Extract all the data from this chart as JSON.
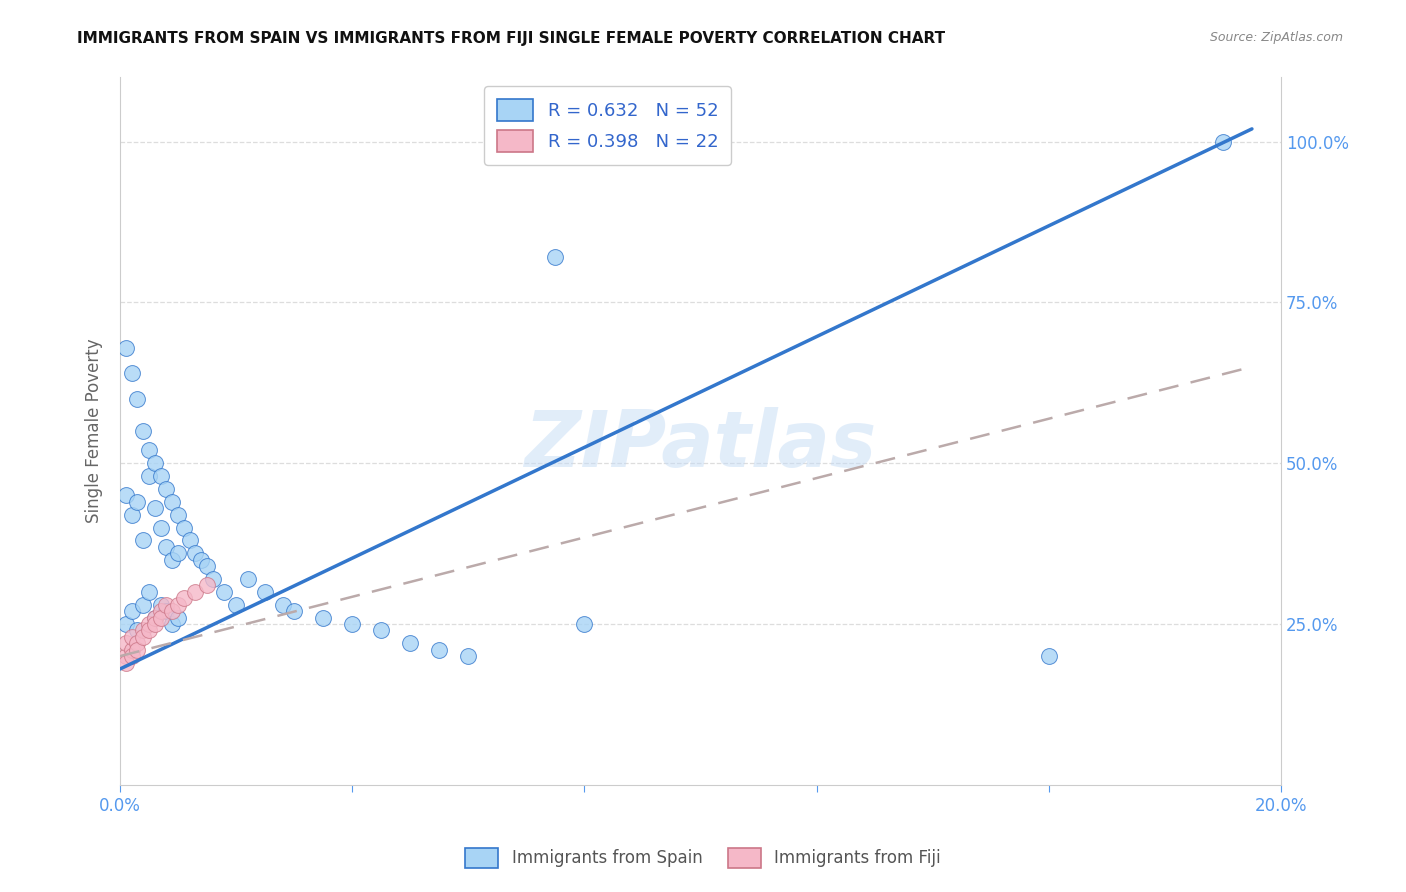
{
  "title": "IMMIGRANTS FROM SPAIN VS IMMIGRANTS FROM FIJI SINGLE FEMALE POVERTY CORRELATION CHART",
  "source": "Source: ZipAtlas.com",
  "ylabel": "Single Female Poverty",
  "legend_label_spain": "Immigrants from Spain",
  "legend_label_fiji": "Immigrants from Fiji",
  "color_spain": "#a8d4f5",
  "color_fiji": "#f5b8c8",
  "color_line_spain": "#3377cc",
  "color_line_fiji": "#bbaaaa",
  "watermark": "ZIPatlas",
  "spain_scatter_x": [
    0.001,
    0.002,
    0.003,
    0.004,
    0.005,
    0.006,
    0.007,
    0.008,
    0.009,
    0.01,
    0.001,
    0.002,
    0.003,
    0.004,
    0.005,
    0.006,
    0.007,
    0.008,
    0.009,
    0.01,
    0.001,
    0.002,
    0.003,
    0.004,
    0.005,
    0.006,
    0.007,
    0.008,
    0.009,
    0.01,
    0.011,
    0.012,
    0.013,
    0.014,
    0.015,
    0.016,
    0.018,
    0.02,
    0.022,
    0.025,
    0.028,
    0.03,
    0.035,
    0.04,
    0.045,
    0.05,
    0.055,
    0.06,
    0.075,
    0.08,
    0.16,
    0.19
  ],
  "spain_scatter_y": [
    0.25,
    0.27,
    0.24,
    0.28,
    0.3,
    0.26,
    0.28,
    0.27,
    0.25,
    0.26,
    0.45,
    0.42,
    0.44,
    0.38,
    0.48,
    0.43,
    0.4,
    0.37,
    0.35,
    0.36,
    0.68,
    0.64,
    0.6,
    0.55,
    0.52,
    0.5,
    0.48,
    0.46,
    0.44,
    0.42,
    0.4,
    0.38,
    0.36,
    0.35,
    0.34,
    0.32,
    0.3,
    0.28,
    0.32,
    0.3,
    0.28,
    0.27,
    0.26,
    0.25,
    0.24,
    0.22,
    0.21,
    0.2,
    0.82,
    0.25,
    0.2,
    1.0
  ],
  "fiji_scatter_x": [
    0.001,
    0.001,
    0.001,
    0.002,
    0.002,
    0.002,
    0.003,
    0.003,
    0.004,
    0.004,
    0.005,
    0.005,
    0.006,
    0.006,
    0.007,
    0.007,
    0.008,
    0.009,
    0.01,
    0.011,
    0.013,
    0.015
  ],
  "fiji_scatter_y": [
    0.2,
    0.22,
    0.19,
    0.21,
    0.23,
    0.2,
    0.22,
    0.21,
    0.24,
    0.23,
    0.25,
    0.24,
    0.26,
    0.25,
    0.27,
    0.26,
    0.28,
    0.27,
    0.28,
    0.29,
    0.3,
    0.31
  ],
  "xmin": 0.0,
  "xmax": 0.2,
  "ymin": 0.0,
  "ymax": 1.1,
  "spain_line_x": [
    0.0,
    0.195
  ],
  "spain_line_y": [
    0.18,
    1.02
  ],
  "fiji_line_x": [
    0.0,
    0.195
  ],
  "fiji_line_y": [
    0.2,
    0.65
  ],
  "xticks": [
    0.0,
    0.04,
    0.08,
    0.12,
    0.16,
    0.2
  ],
  "yticks_right": [
    0.25,
    0.5,
    0.75,
    1.0
  ],
  "ytick_labels_right": [
    "25.0%",
    "50.0%",
    "75.0%",
    "100.0%"
  ],
  "grid_color": "#dddddd",
  "title_fontsize": 11,
  "source_fontsize": 9,
  "axis_tick_color": "#5599ee"
}
